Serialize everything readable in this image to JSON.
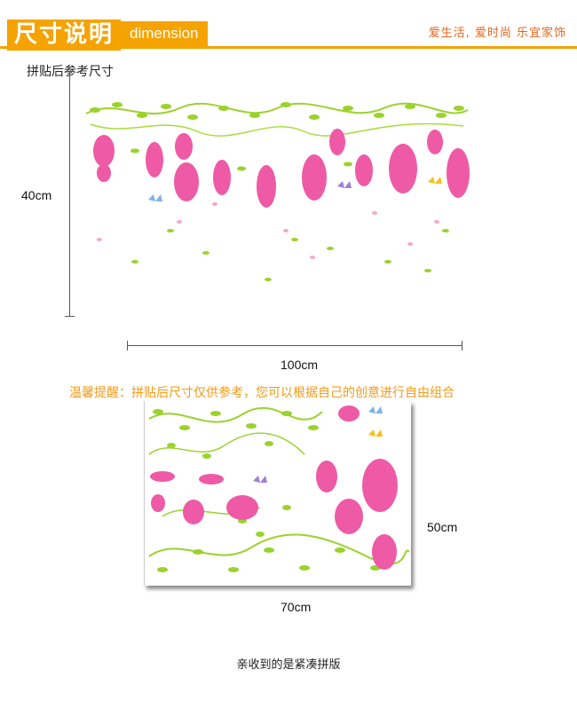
{
  "header": {
    "title_cn": "尺寸说明",
    "title_en": "dimension",
    "slogan": "爱生活, 爱时尚 乐宜家饰"
  },
  "subtitle": "拼贴后参考尺寸",
  "top_diagram": {
    "height_label": "40cm",
    "width_label": "100cm"
  },
  "tip": "温馨提醒：拼贴后尺寸仅供参考，您可以根据自己的创意进行自由组合",
  "product": {
    "height_label": "50cm",
    "width_label": "70cm"
  },
  "footer": "亲收到的是紧凑拼版",
  "colors": {
    "accent": "#f5a300",
    "tip": "#f29b18",
    "leaf": "#9bd22c",
    "flower": "#ee5aa6"
  }
}
